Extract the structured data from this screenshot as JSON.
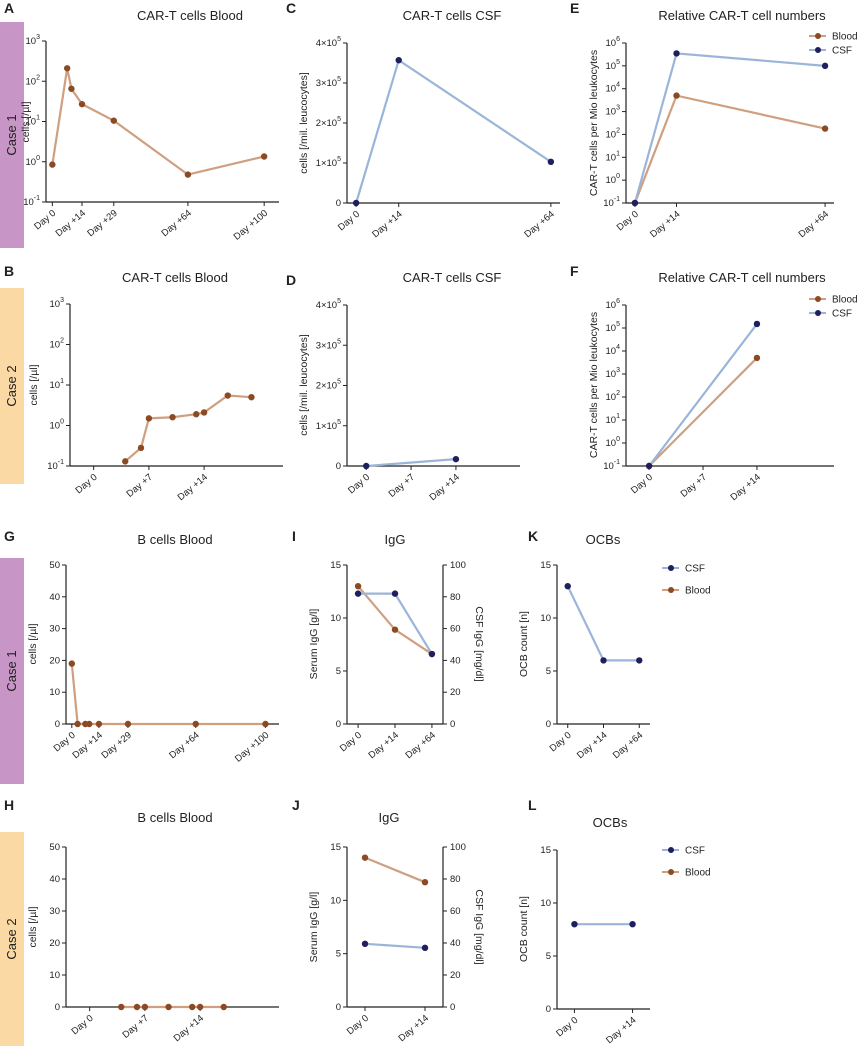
{
  "colors": {
    "blood_line": "#cf9f80",
    "blood_dot": "#8b4a24",
    "csf_line": "#9bb5d9",
    "csf_dot": "#1f1f5e",
    "case1_band": "#c796c7",
    "case2_band": "#fbd9a4"
  },
  "case_labels": {
    "case1": "Case 1",
    "case2": "Case 2"
  },
  "legend": {
    "blood": "Blood",
    "csf": "CSF"
  },
  "chart_data": [
    {
      "id": "A",
      "type": "line",
      "title": "CAR-T cells Blood",
      "ylabel": "cells [/µl]",
      "yscale": "log",
      "ylim_exp": [
        -1,
        3
      ],
      "yticks": [
        {
          "base": "10",
          "exp": "-1"
        },
        {
          "base": "10",
          "exp": "0"
        },
        {
          "base": "10",
          "exp": "1"
        },
        {
          "base": "10",
          "exp": "2"
        },
        {
          "base": "10",
          "exp": "3"
        }
      ],
      "xlim": [
        -3,
        107
      ],
      "xticks": [
        {
          "x": 0,
          "label": "Day 0"
        },
        {
          "x": 14,
          "label": "Day +14"
        },
        {
          "x": 29,
          "label": "Day +29"
        },
        {
          "x": 64,
          "label": "Day +64"
        },
        {
          "x": 100,
          "label": "Day +100"
        }
      ],
      "series": [
        {
          "name": "Blood",
          "x": [
            0,
            7,
            9,
            14,
            29,
            64,
            100
          ],
          "y": [
            0.85,
            210,
            65,
            27,
            10.5,
            0.48,
            1.35
          ]
        }
      ]
    },
    {
      "id": "B",
      "type": "line",
      "title": "CAR-T cells Blood",
      "ylabel": "cells [/µl]",
      "yscale": "log",
      "ylim_exp": [
        -1,
        3
      ],
      "yticks": [
        {
          "base": "10",
          "exp": "-1"
        },
        {
          "base": "10",
          "exp": "0"
        },
        {
          "base": "10",
          "exp": "1"
        },
        {
          "base": "10",
          "exp": "2"
        },
        {
          "base": "10",
          "exp": "3"
        }
      ],
      "xlim": [
        -3,
        24
      ],
      "xticks": [
        {
          "x": 0,
          "label": "Day 0"
        },
        {
          "x": 7,
          "label": "Day +7"
        },
        {
          "x": 14,
          "label": "Day +14"
        }
      ],
      "series": [
        {
          "name": "Blood",
          "x": [
            4,
            6,
            7,
            10,
            13,
            14,
            17,
            20
          ],
          "y": [
            0.13,
            0.28,
            1.5,
            1.6,
            1.9,
            2.1,
            5.5,
            5.0
          ]
        }
      ]
    },
    {
      "id": "C",
      "type": "line",
      "title": "CAR-T cells CSF",
      "ylabel": "cells [/mil. leucocytes]",
      "yscale": "linear",
      "ylim": [
        0,
        400000
      ],
      "yticks": [
        {
          "v": 0,
          "label": "0",
          "exp": ""
        },
        {
          "v": 100000,
          "label": "1×10",
          "exp": "5"
        },
        {
          "v": 200000,
          "label": "2×10",
          "exp": "5"
        },
        {
          "v": 300000,
          "label": "3×10",
          "exp": "5"
        },
        {
          "v": 400000,
          "label": "4×10",
          "exp": "5"
        }
      ],
      "xlim": [
        -3,
        67
      ],
      "xticks": [
        {
          "x": 0,
          "label": "Day 0"
        },
        {
          "x": 14,
          "label": "Day +14"
        },
        {
          "x": 64,
          "label": "Day +64"
        }
      ],
      "series": [
        {
          "name": "CSF",
          "x": [
            0,
            14,
            64
          ],
          "y": [
            0,
            357000,
            103000
          ]
        }
      ]
    },
    {
      "id": "D",
      "type": "line",
      "title": "CAR-T cells CSF",
      "ylabel": "cells [/mil. leucocytes]",
      "yscale": "linear",
      "ylim": [
        0,
        400000
      ],
      "yticks": [
        {
          "v": 0,
          "label": "0",
          "exp": ""
        },
        {
          "v": 100000,
          "label": "1×10",
          "exp": "5"
        },
        {
          "v": 200000,
          "label": "2×10",
          "exp": "5"
        },
        {
          "v": 300000,
          "label": "3×10",
          "exp": "5"
        },
        {
          "v": 400000,
          "label": "4×10",
          "exp": "5"
        }
      ],
      "xlim": [
        -3,
        24
      ],
      "xticks": [
        {
          "x": 0,
          "label": "Day 0"
        },
        {
          "x": 7,
          "label": "Day +7"
        },
        {
          "x": 14,
          "label": "Day +14"
        }
      ],
      "series": [
        {
          "name": "CSF",
          "x": [
            0,
            14
          ],
          "y": [
            0,
            17000
          ]
        }
      ]
    },
    {
      "id": "E",
      "type": "line",
      "title": "Relative CAR-T cell numbers",
      "ylabel": "CAR-T cells per Mio leukocytes",
      "yscale": "log",
      "ylim_exp": [
        -1,
        6
      ],
      "yticks": [
        {
          "base": "10",
          "exp": "-1"
        },
        {
          "base": "10",
          "exp": "0"
        },
        {
          "base": "10",
          "exp": "1"
        },
        {
          "base": "10",
          "exp": "2"
        },
        {
          "base": "10",
          "exp": "3"
        },
        {
          "base": "10",
          "exp": "4"
        },
        {
          "base": "10",
          "exp": "5"
        },
        {
          "base": "10",
          "exp": "6"
        }
      ],
      "xlim": [
        -3,
        67
      ],
      "xticks": [
        {
          "x": 0,
          "label": "Day 0"
        },
        {
          "x": 14,
          "label": "Day +14"
        },
        {
          "x": 64,
          "label": "Day +64"
        }
      ],
      "legend": [
        "Blood",
        "CSF"
      ],
      "series": [
        {
          "name": "Blood",
          "x": [
            0,
            14,
            64
          ],
          "y": [
            0.1,
            5000,
            180
          ]
        },
        {
          "name": "CSF",
          "x": [
            0,
            14,
            64
          ],
          "y": [
            0.1,
            350000,
            100000
          ]
        }
      ]
    },
    {
      "id": "F",
      "type": "line",
      "title": "Relative CAR-T cell numbers",
      "ylabel": "CAR-T cells per Mio leukocytes",
      "yscale": "log",
      "ylim_exp": [
        -1,
        6
      ],
      "yticks": [
        {
          "base": "10",
          "exp": "-1"
        },
        {
          "base": "10",
          "exp": "0"
        },
        {
          "base": "10",
          "exp": "1"
        },
        {
          "base": "10",
          "exp": "2"
        },
        {
          "base": "10",
          "exp": "3"
        },
        {
          "base": "10",
          "exp": "4"
        },
        {
          "base": "10",
          "exp": "5"
        },
        {
          "base": "10",
          "exp": "6"
        }
      ],
      "xlim": [
        -3,
        24
      ],
      "xticks": [
        {
          "x": 0,
          "label": "Day 0"
        },
        {
          "x": 7,
          "label": "Day +7"
        },
        {
          "x": 14,
          "label": "Day +14"
        }
      ],
      "legend": [
        "Blood",
        "CSF"
      ],
      "series": [
        {
          "name": "Blood",
          "x": [
            0,
            14
          ],
          "y": [
            0.1,
            5000
          ]
        },
        {
          "name": "CSF",
          "x": [
            0,
            14
          ],
          "y": [
            0.1,
            150000
          ]
        }
      ]
    },
    {
      "id": "G",
      "type": "line",
      "title": "B cells Blood",
      "ylabel": "cells [/µl]",
      "yscale": "linear",
      "ylim": [
        0,
        50
      ],
      "yticks": [
        {
          "v": 0,
          "label": "0"
        },
        {
          "v": 10,
          "label": "10"
        },
        {
          "v": 20,
          "label": "20"
        },
        {
          "v": 30,
          "label": "30"
        },
        {
          "v": 40,
          "label": "40"
        },
        {
          "v": 50,
          "label": "50"
        }
      ],
      "xlim": [
        -3,
        107
      ],
      "xticks": [
        {
          "x": 0,
          "label": "Day 0"
        },
        {
          "x": 14,
          "label": "Day +14"
        },
        {
          "x": 29,
          "label": "Day +29"
        },
        {
          "x": 64,
          "label": "Day +64"
        },
        {
          "x": 100,
          "label": "Day +100"
        }
      ],
      "series": [
        {
          "name": "Blood",
          "x": [
            0,
            3,
            7,
            9,
            14,
            29,
            64,
            100
          ],
          "y": [
            19,
            0,
            0,
            0,
            0,
            0,
            0,
            0
          ]
        }
      ]
    },
    {
      "id": "H",
      "type": "line",
      "title": "B cells Blood",
      "ylabel": "cells [/µl]",
      "yscale": "linear",
      "ylim": [
        0,
        50
      ],
      "yticks": [
        {
          "v": 0,
          "label": "0"
        },
        {
          "v": 10,
          "label": "10"
        },
        {
          "v": 20,
          "label": "20"
        },
        {
          "v": 30,
          "label": "30"
        },
        {
          "v": 40,
          "label": "40"
        },
        {
          "v": 50,
          "label": "50"
        }
      ],
      "xlim": [
        -3,
        24
      ],
      "xticks": [
        {
          "x": 0,
          "label": "Day 0"
        },
        {
          "x": 7,
          "label": "Day +7"
        },
        {
          "x": 14,
          "label": "Day +14"
        }
      ],
      "series": [
        {
          "name": "Blood",
          "x": [
            4,
            6,
            7,
            10,
            13,
            14,
            17
          ],
          "y": [
            0,
            0,
            0,
            0,
            0,
            0,
            0
          ]
        }
      ]
    },
    {
      "id": "I",
      "type": "line",
      "title": "IgG",
      "ylabel": "Serum IgG [g/l]",
      "ylabel_right": "CSF IgG [mg/dl]",
      "yscale": "linear",
      "ylim": [
        0,
        15
      ],
      "ylim_right": [
        0,
        100
      ],
      "yticks": [
        {
          "v": 0,
          "label": "0"
        },
        {
          "v": 5,
          "label": "5"
        },
        {
          "v": 10,
          "label": "10"
        },
        {
          "v": 15,
          "label": "15"
        }
      ],
      "yticks_right": [
        {
          "v": 0,
          "label": "0"
        },
        {
          "v": 20,
          "label": "20"
        },
        {
          "v": 40,
          "label": "40"
        },
        {
          "v": 60,
          "label": "60"
        },
        {
          "v": 80,
          "label": "80"
        },
        {
          "v": 100,
          "label": "100"
        }
      ],
      "xlim": [
        -0.3,
        2.3
      ],
      "xticks": [
        {
          "x": 0,
          "label": "Day 0"
        },
        {
          "x": 1,
          "label": "Day +14"
        },
        {
          "x": 2,
          "label": "Day +64"
        }
      ],
      "series": [
        {
          "name": "Blood",
          "axis": "left",
          "x": [
            0,
            1,
            2
          ],
          "y": [
            13.0,
            8.9,
            6.6
          ]
        },
        {
          "name": "CSF",
          "axis": "right",
          "x": [
            0,
            1,
            2
          ],
          "y": [
            82,
            82,
            44
          ]
        }
      ]
    },
    {
      "id": "J",
      "type": "line",
      "title": "IgG",
      "ylabel": "Serum IgG [g/l]",
      "ylabel_right": "CSF IgG [mg/dl]",
      "yscale": "linear",
      "ylim": [
        0,
        15
      ],
      "ylim_right": [
        0,
        100
      ],
      "yticks": [
        {
          "v": 0,
          "label": "0"
        },
        {
          "v": 5,
          "label": "5"
        },
        {
          "v": 10,
          "label": "10"
        },
        {
          "v": 15,
          "label": "15"
        }
      ],
      "yticks_right": [
        {
          "v": 0,
          "label": "0"
        },
        {
          "v": 20,
          "label": "20"
        },
        {
          "v": 40,
          "label": "40"
        },
        {
          "v": 60,
          "label": "60"
        },
        {
          "v": 80,
          "label": "80"
        },
        {
          "v": 100,
          "label": "100"
        }
      ],
      "xlim": [
        -0.3,
        1.3
      ],
      "xticks": [
        {
          "x": 0,
          "label": "Day 0"
        },
        {
          "x": 1,
          "label": "Day +14"
        }
      ],
      "series": [
        {
          "name": "Blood",
          "axis": "left",
          "x": [
            0,
            1
          ],
          "y": [
            14.0,
            11.7
          ]
        },
        {
          "name": "CSF",
          "axis": "right",
          "x": [
            0,
            1
          ],
          "y": [
            39.5,
            37
          ]
        }
      ]
    },
    {
      "id": "K",
      "type": "line",
      "title": "OCBs",
      "ylabel": "OCB count [n]",
      "yscale": "linear",
      "ylim": [
        0,
        15
      ],
      "yticks": [
        {
          "v": 0,
          "label": "0"
        },
        {
          "v": 5,
          "label": "5"
        },
        {
          "v": 10,
          "label": "10"
        },
        {
          "v": 15,
          "label": "15"
        }
      ],
      "xlim": [
        -0.3,
        2.3
      ],
      "xticks": [
        {
          "x": 0,
          "label": "Day 0"
        },
        {
          "x": 1,
          "label": "Day +14"
        },
        {
          "x": 2,
          "label": "Day +64"
        }
      ],
      "legend": [
        "CSF",
        "Blood"
      ],
      "series": [
        {
          "name": "CSF",
          "x": [
            0,
            1,
            2
          ],
          "y": [
            13,
            6,
            6
          ]
        }
      ]
    },
    {
      "id": "L",
      "type": "line",
      "title": "OCBs",
      "ylabel": "OCB count [n]",
      "yscale": "linear",
      "ylim": [
        0,
        15
      ],
      "yticks": [
        {
          "v": 0,
          "label": "0"
        },
        {
          "v": 5,
          "label": "5"
        },
        {
          "v": 10,
          "label": "10"
        },
        {
          "v": 15,
          "label": "15"
        }
      ],
      "xlim": [
        -0.3,
        1.3
      ],
      "xticks": [
        {
          "x": 0,
          "label": "Day 0"
        },
        {
          "x": 1,
          "label": "Day +14"
        }
      ],
      "legend": [
        "CSF",
        "Blood"
      ],
      "series": [
        {
          "name": "CSF",
          "x": [
            0,
            1
          ],
          "y": [
            8,
            8
          ]
        }
      ]
    }
  ]
}
